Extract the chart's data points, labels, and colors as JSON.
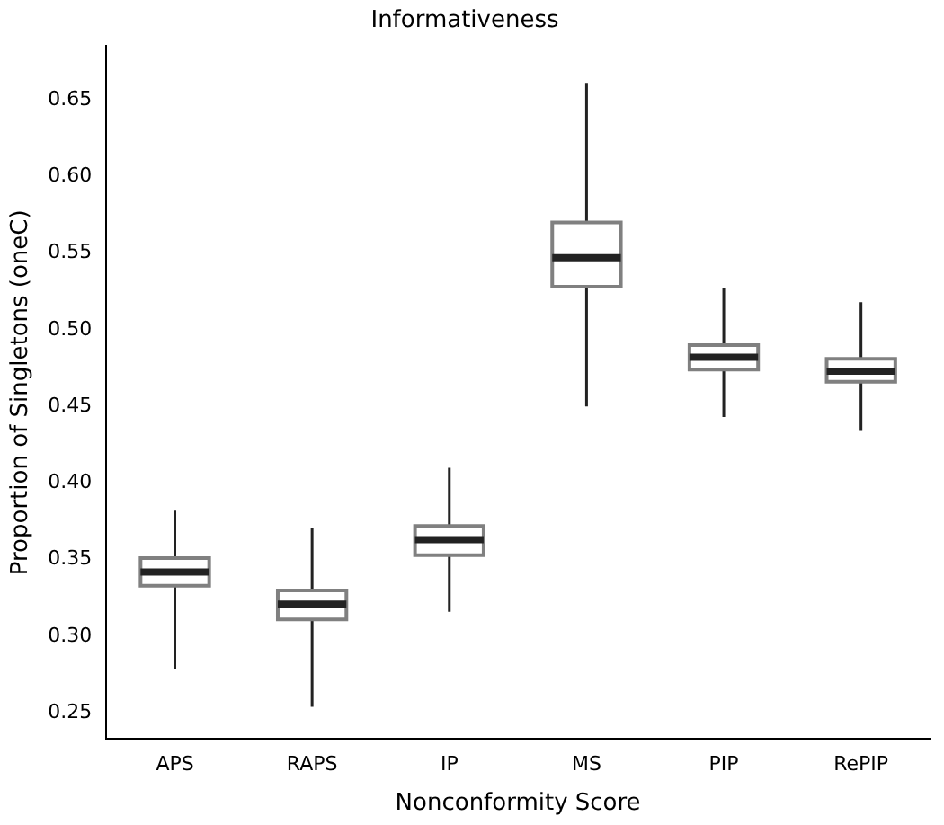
{
  "chart_data": {
    "type": "box",
    "title": "Informativeness",
    "xlabel": "Nonconformity Score",
    "ylabel": "Proportion of Singletons (oneC)",
    "categories": [
      "APS",
      "RAPS",
      "IP",
      "MS",
      "PIP",
      "RePIP"
    ],
    "color": "#808080",
    "boxes": [
      {
        "low": 0.279,
        "q1": 0.333,
        "median": 0.342,
        "q3": 0.351,
        "high": 0.382
      },
      {
        "low": 0.254,
        "q1": 0.311,
        "median": 0.321,
        "q3": 0.33,
        "high": 0.371
      },
      {
        "low": 0.316,
        "q1": 0.353,
        "median": 0.363,
        "q3": 0.372,
        "high": 0.41
      },
      {
        "low": 0.45,
        "q1": 0.528,
        "median": 0.547,
        "q3": 0.57,
        "high": 0.661
      },
      {
        "low": 0.443,
        "q1": 0.474,
        "median": 0.482,
        "q3": 0.49,
        "high": 0.527
      },
      {
        "low": 0.434,
        "q1": 0.466,
        "median": 0.473,
        "q3": 0.481,
        "high": 0.518
      }
    ],
    "ylim": [
      0.233,
      0.685
    ],
    "yticks": [
      0.25,
      {
        "value": 0.3,
        "label": "0.30"
      },
      0.35,
      {
        "value": 0.4,
        "label": "0.40"
      },
      0.45,
      {
        "value": 0.5,
        "label": "0.50"
      },
      0.55,
      {
        "value": 0.6,
        "label": "0.60"
      },
      0.65
    ],
    "grid": false,
    "legend": false
  }
}
